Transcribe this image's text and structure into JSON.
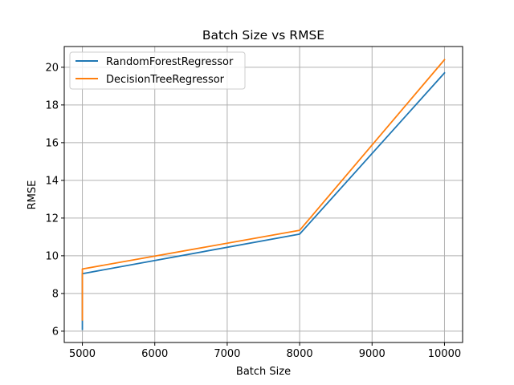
{
  "chart_data": {
    "type": "line",
    "title": "Batch Size vs RMSE",
    "xlabel": "Batch Size",
    "ylabel": "RMSE",
    "xlim": [
      4750,
      10250
    ],
    "ylim": [
      5.4,
      21.1
    ],
    "xticks": [
      5000,
      6000,
      7000,
      8000,
      9000,
      10000
    ],
    "yticks": [
      6,
      8,
      10,
      12,
      14,
      16,
      18,
      20
    ],
    "grid": true,
    "legend_position": "top-left",
    "series": [
      {
        "name": "RandomForestRegressor",
        "color": "#1f77b4",
        "points": [
          [
            5000,
            6.1
          ],
          [
            5000,
            9.05
          ],
          [
            8000,
            11.15
          ],
          [
            10000,
            19.7
          ]
        ]
      },
      {
        "name": "DecisionTreeRegressor",
        "color": "#ff7f0e",
        "points": [
          [
            5000,
            6.6
          ],
          [
            5000,
            9.3
          ],
          [
            8000,
            11.35
          ],
          [
            10000,
            20.4
          ]
        ]
      }
    ]
  }
}
